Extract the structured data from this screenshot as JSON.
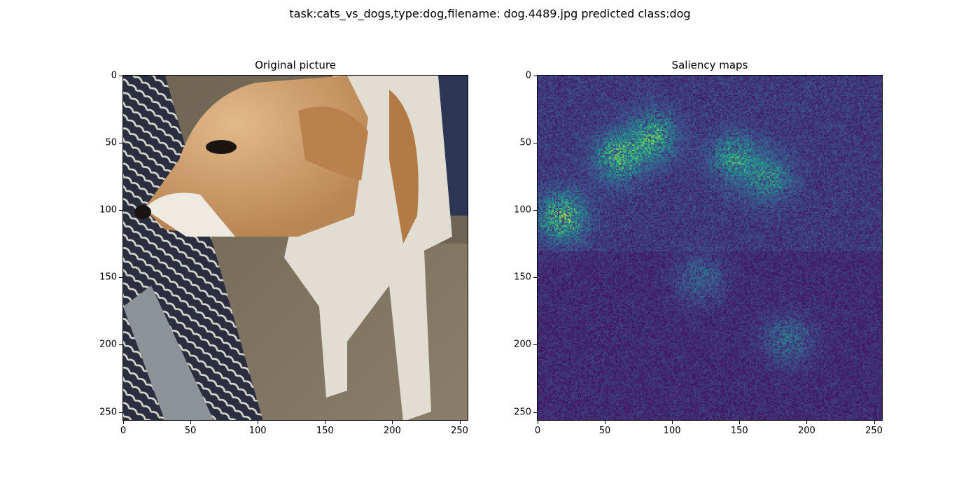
{
  "figure": {
    "suptitle": "task:cats_vs_dogs,type:dog,filename: dog.4489.jpg predicted class:dog"
  },
  "chart_data": [
    {
      "type": "heatmap",
      "title": "Original picture",
      "content": "photo",
      "xlim": [
        0,
        255
      ],
      "ylim": [
        255,
        0
      ],
      "xticks": [
        0,
        50,
        100,
        150,
        200,
        250
      ],
      "yticks": [
        0,
        50,
        100,
        150,
        200,
        250
      ],
      "xtick_labels": [
        "0",
        "50",
        "100",
        "150",
        "200",
        "250"
      ],
      "ytick_labels": [
        "0",
        "50",
        "100",
        "150",
        "200",
        "250"
      ]
    },
    {
      "type": "heatmap",
      "title": "Saliency maps",
      "colormap": "viridis",
      "xlim": [
        0,
        255
      ],
      "ylim": [
        255,
        0
      ],
      "xticks": [
        0,
        50,
        100,
        150,
        200,
        250
      ],
      "yticks": [
        0,
        50,
        100,
        150,
        200,
        250
      ],
      "xtick_labels": [
        "0",
        "50",
        "100",
        "150",
        "200",
        "250"
      ],
      "ytick_labels": [
        "0",
        "50",
        "100",
        "150",
        "200",
        "250"
      ],
      "hotspots": [
        {
          "x": 60,
          "y": 60,
          "intensity": 0.8
        },
        {
          "x": 85,
          "y": 45,
          "intensity": 0.75
        },
        {
          "x": 18,
          "y": 104,
          "intensity": 0.85
        },
        {
          "x": 145,
          "y": 60,
          "intensity": 0.6
        },
        {
          "x": 170,
          "y": 75,
          "intensity": 0.55
        },
        {
          "x": 120,
          "y": 150,
          "intensity": 0.35
        },
        {
          "x": 185,
          "y": 195,
          "intensity": 0.4
        }
      ]
    }
  ]
}
